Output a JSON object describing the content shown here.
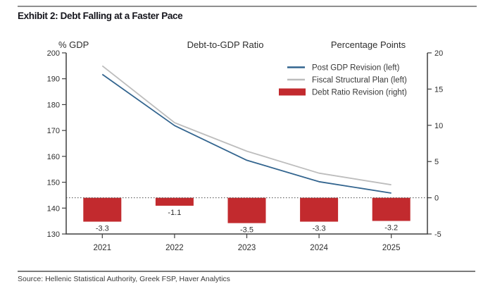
{
  "page": {
    "title": "Exhibit 2: Debt Falling at a Faster Pace",
    "source": "Source: Hellenic Statistical Authority, Greek FSP, Haver Analytics"
  },
  "chart_data": {
    "type": "combo",
    "title": "Debt-to-GDP Ratio",
    "left_axis_title": "% GDP",
    "right_axis_title": "Percentage Points",
    "categories": [
      "2021",
      "2022",
      "2023",
      "2024",
      "2025"
    ],
    "series": [
      {
        "name": "Post GDP Revision (left)",
        "type": "line",
        "axis": "left",
        "color": "#33658f",
        "values": [
          191.7,
          171.9,
          158.5,
          150.2,
          145.8
        ]
      },
      {
        "name": "Fiscal Structural Plan (left)",
        "type": "line",
        "axis": "left",
        "color": "#bdbdbd",
        "values": [
          195,
          173,
          162,
          153.5,
          149
        ]
      },
      {
        "name": "Debt Ratio Revision (right)",
        "type": "bar",
        "axis": "right",
        "color": "#c22a2e",
        "values": [
          -3.3,
          -1.1,
          -3.5,
          -3.3,
          -3.2
        ],
        "labels": [
          "-3.3",
          "-1.1",
          "-3.5",
          "-3.3",
          "-3.2"
        ]
      }
    ],
    "left_axis": {
      "min": 130,
      "max": 200,
      "ticks": [
        200,
        190,
        180,
        170,
        160,
        150,
        140,
        130
      ]
    },
    "right_axis": {
      "min": -5,
      "max": 20,
      "ticks": [
        20,
        15,
        10,
        5,
        0,
        -5
      ]
    },
    "zero_line": {
      "axis": "right",
      "value": 0,
      "style": "dashed"
    },
    "legend_position": "top-right",
    "grid": false,
    "colors": {
      "axis": "#3f3f3f",
      "tick_text": "#2e2e2e",
      "header_text": "#2e2e2e",
      "legend_text": "#383838",
      "zero_line": "#4a4a4a"
    }
  }
}
